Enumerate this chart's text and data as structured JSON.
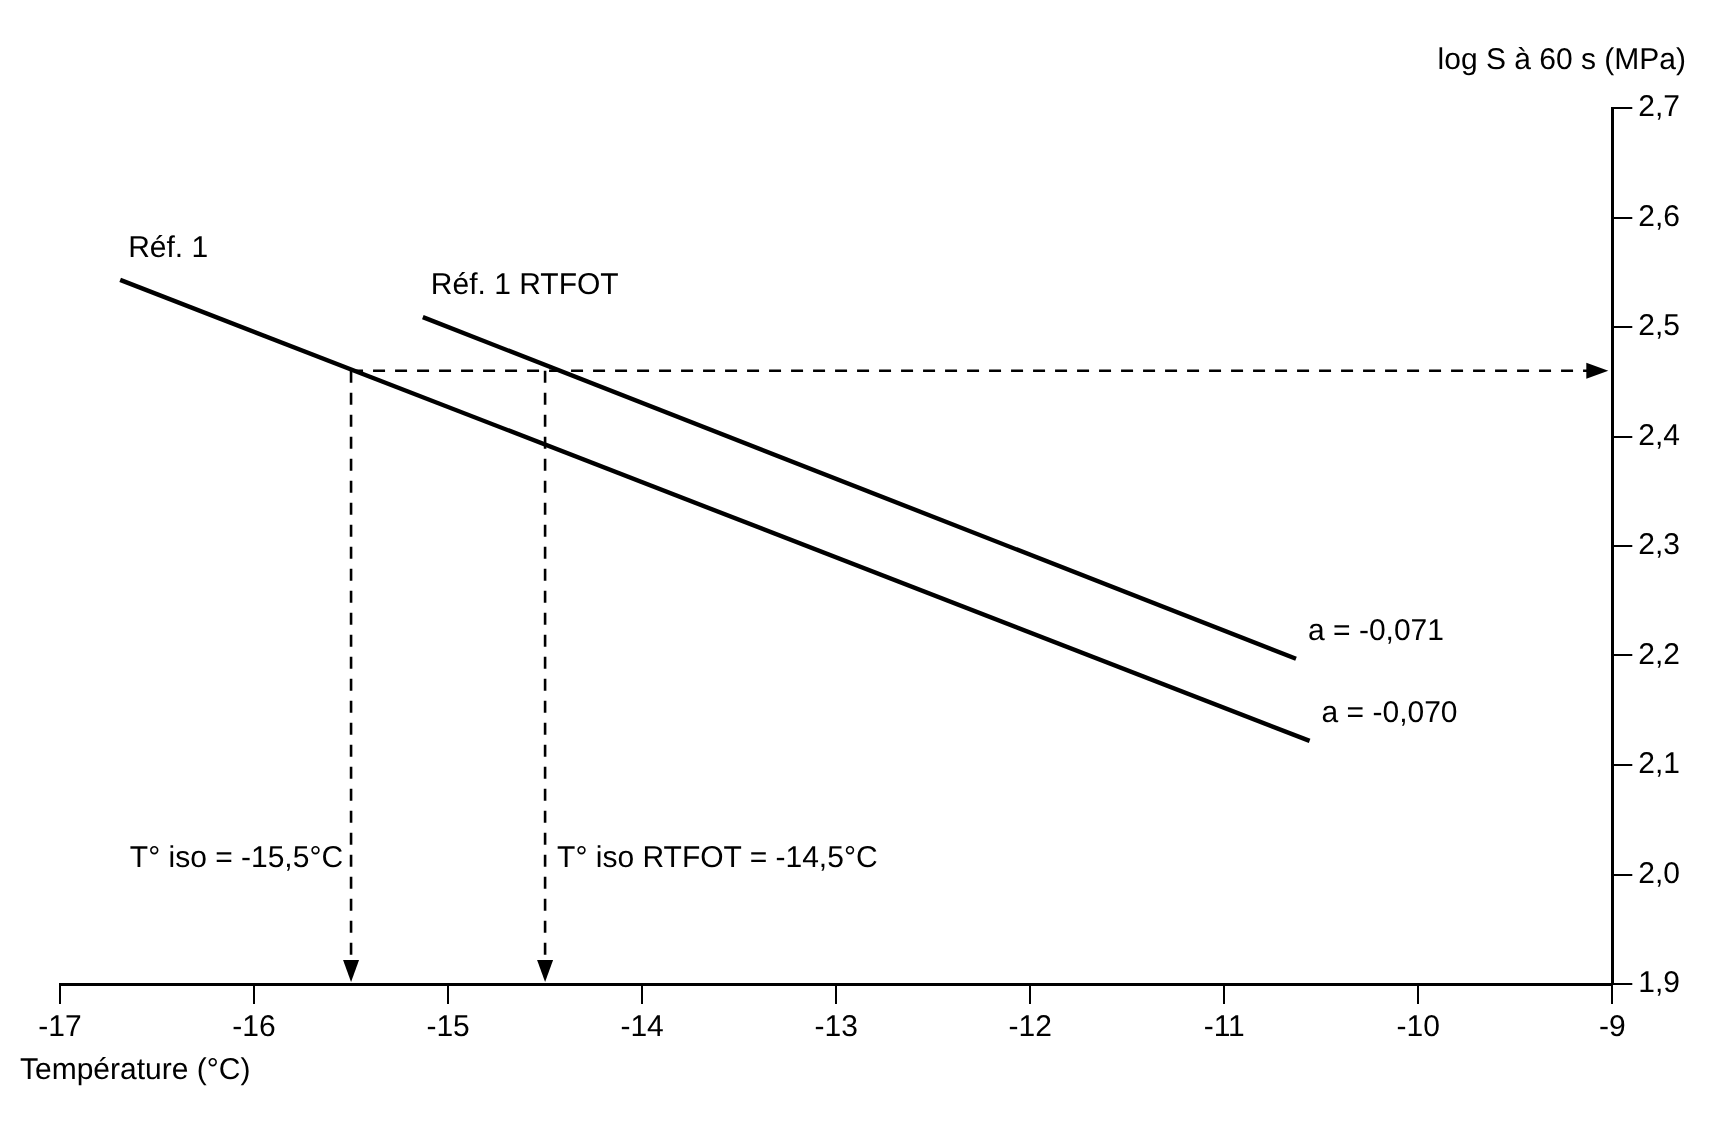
{
  "chart_data": {
    "type": "line",
    "xlabel": "Température (°C)",
    "ylabel": "log S à 60 s (MPa)",
    "xlim": [
      -17,
      -9
    ],
    "xticks": [
      -17,
      -16,
      -15,
      -14,
      -13,
      -12,
      -11,
      -10,
      -9
    ],
    "ylim": [
      1.9,
      2.7
    ],
    "yticks": [
      {
        "value": 1.9,
        "label": "1,9"
      },
      {
        "value": 2.0,
        "label": "2,0"
      },
      {
        "value": 2.1,
        "label": "2,1"
      },
      {
        "value": 2.2,
        "label": "2,2"
      },
      {
        "value": 2.3,
        "label": "2,3"
      },
      {
        "value": 2.4,
        "label": "2,4"
      },
      {
        "value": 2.5,
        "label": "2,5"
      },
      {
        "value": 2.6,
        "label": "2,6"
      },
      {
        "value": 2.7,
        "label": "2,7"
      }
    ],
    "grid": false,
    "legend": false,
    "marker": "none",
    "line_style": "solid",
    "series": [
      {
        "name": "Réf. 1",
        "color": "#000000",
        "x": [
          -16.69,
          -10.56
        ],
        "values": [
          2.543,
          2.122
        ]
      },
      {
        "name": "Réf. 1 RTFOT",
        "color": "#000000",
        "x": [
          -15.13,
          -10.63
        ],
        "values": [
          2.509,
          2.197
        ]
      }
    ],
    "annotations": [
      {
        "text": "a = -0,071",
        "x": -10.63,
        "y": 2.197
      },
      {
        "text": "a = -0,070",
        "x": -10.56,
        "y": 2.122
      }
    ],
    "ref_lines": [
      {
        "axis": "y",
        "value": 2.46,
        "line_style": "dashed",
        "color": "#000000"
      },
      {
        "axis": "x",
        "value": -15.5,
        "label": "T° iso = -15,5°C",
        "line_style": "dashed",
        "color": "#000000"
      },
      {
        "axis": "x",
        "value": -14.5,
        "label": "T° iso RTFOT = -14,5°C",
        "line_style": "dashed",
        "color": "#000000"
      }
    ]
  }
}
